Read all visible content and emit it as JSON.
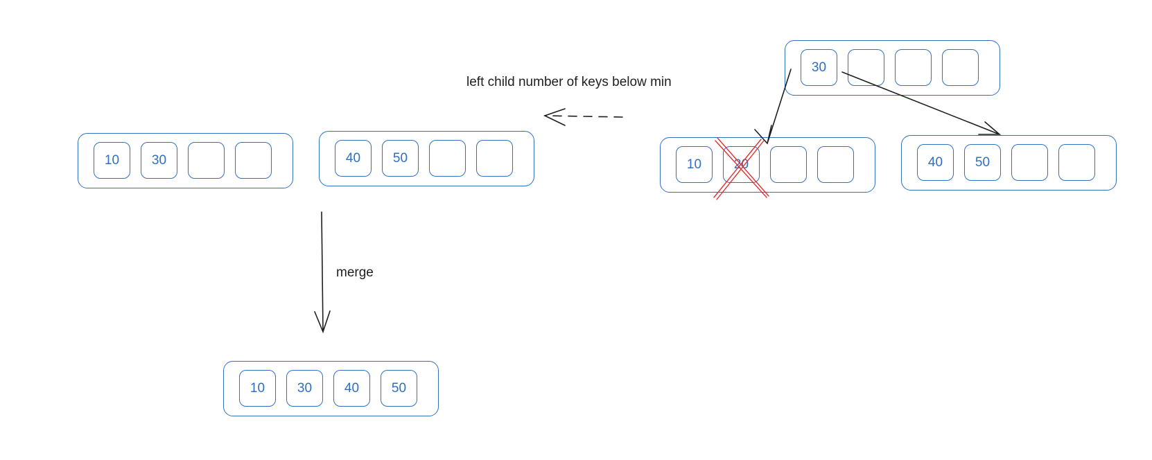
{
  "annotation": "left child number of keys below min",
  "merge_label": "merge",
  "colors": {
    "node": "#2f6fc2",
    "arrow": "#1e1e1e",
    "strike": "#e03131"
  },
  "parent": {
    "keys": [
      "30",
      "",
      "",
      ""
    ]
  },
  "before_left": {
    "keys": [
      "10",
      "20",
      "",
      ""
    ],
    "deleted": "20"
  },
  "before_right": {
    "keys": [
      "40",
      "50",
      "",
      ""
    ]
  },
  "after_left": {
    "keys": [
      "10",
      "30",
      "",
      ""
    ]
  },
  "after_right": {
    "keys": [
      "40",
      "50",
      "",
      ""
    ]
  },
  "merged": {
    "keys": [
      "10",
      "30",
      "40",
      "50"
    ]
  }
}
